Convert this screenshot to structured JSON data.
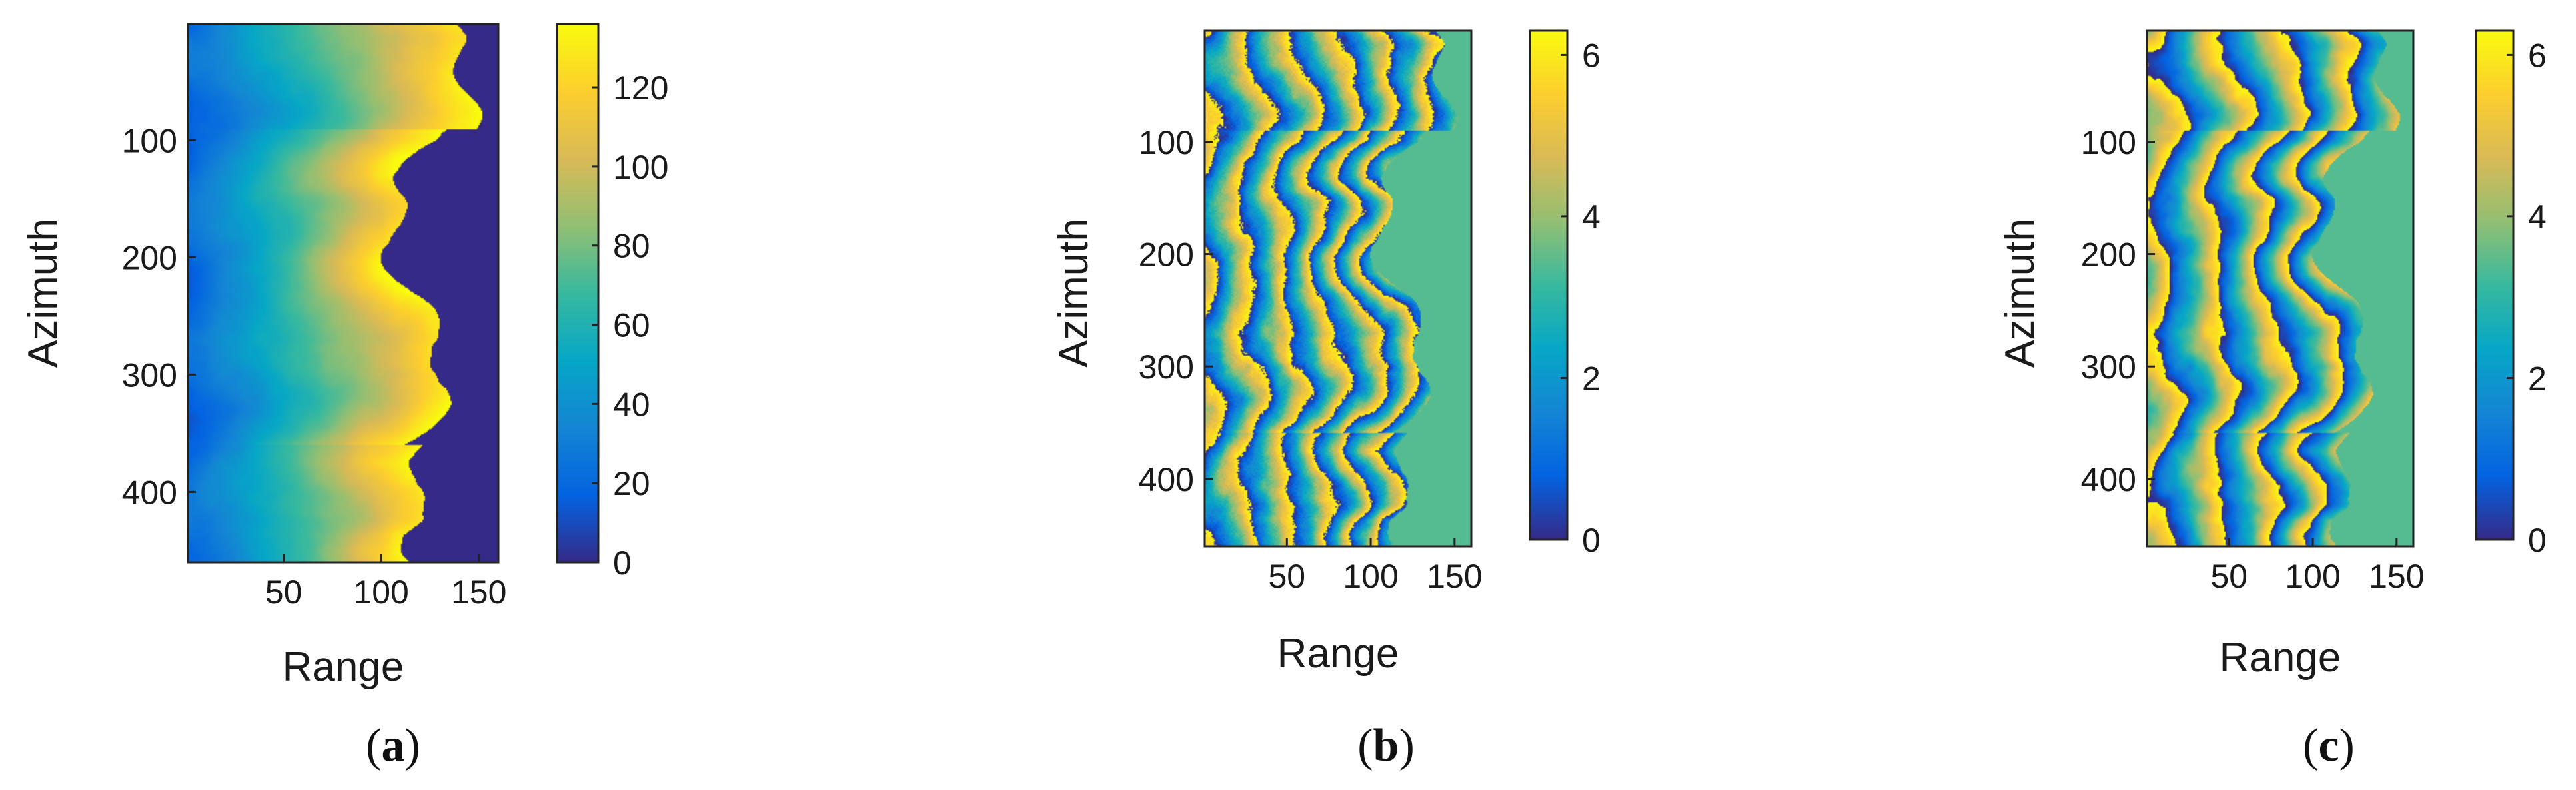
{
  "figure": {
    "panels": [
      {
        "caption_open": "(",
        "caption_letter": "a",
        "caption_close": ")"
      },
      {
        "caption_open": "(",
        "caption_letter": "b",
        "caption_close": ")"
      },
      {
        "caption_open": "(",
        "caption_letter": "c",
        "caption_close": ")"
      }
    ]
  },
  "colors": {
    "colormap_parula": [
      "#352a87",
      "#0363e1",
      "#1485d4",
      "#06a7c6",
      "#38b99e",
      "#92bf73",
      "#d9ba56",
      "#fcce2e",
      "#f9fb0e"
    ]
  },
  "chart_data": [
    {
      "type": "heatmap",
      "xlabel": "Range",
      "ylabel": "Azimuth",
      "xlim": [
        1,
        160
      ],
      "ylim": [
        460,
        1
      ],
      "xticks": [
        50,
        100,
        150
      ],
      "yticks": [
        100,
        200,
        300,
        400
      ],
      "colorbar": {
        "min": 0,
        "max": 136,
        "ticks": [
          0,
          20,
          40,
          60,
          80,
          100,
          120
        ]
      },
      "field": "unwrapped_phase",
      "description_values": "smooth phase increasing from left edge (~20-40) to right ridge (~130), masked region right of ridge = 0"
    },
    {
      "type": "heatmap",
      "xlabel": "Range",
      "ylabel": "Azimuth",
      "xlim": [
        1,
        160
      ],
      "ylim": [
        460,
        1
      ],
      "xticks": [
        50,
        100,
        150
      ],
      "yticks": [
        100,
        200,
        300,
        400
      ],
      "colorbar": {
        "min": 0,
        "max": 6.3,
        "ticks": [
          0,
          2,
          4,
          6
        ]
      },
      "field": "wrapped_phase_noisy"
    },
    {
      "type": "heatmap",
      "xlabel": "Range",
      "ylabel": "Azimuth",
      "xlim": [
        1,
        160
      ],
      "ylim": [
        460,
        1
      ],
      "xticks": [
        50,
        100,
        150
      ],
      "yticks": [
        100,
        200,
        300,
        400
      ],
      "colorbar": {
        "min": 0,
        "max": 6.3,
        "ticks": [
          0,
          2,
          4,
          6
        ]
      },
      "field": "wrapped_phase_filtered"
    }
  ]
}
